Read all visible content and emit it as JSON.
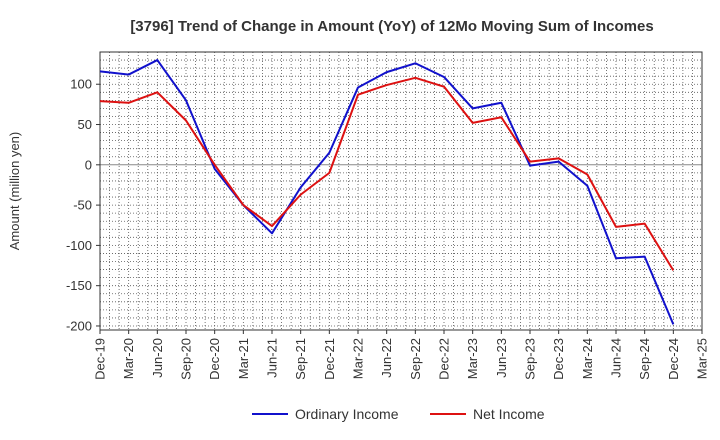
{
  "chart_data": {
    "type": "line",
    "title": "[3796]  Trend of Change in Amount (YoY) of 12Mo Moving Sum of Incomes",
    "xlabel": "",
    "ylabel": "Amount (million yen)",
    "ylim": [
      -205,
      140
    ],
    "yticks": [
      100,
      50,
      0,
      -50,
      -100,
      -150,
      -200
    ],
    "grid": true,
    "legend_position": "bottom-center",
    "categories": [
      "Dec-19",
      "Mar-20",
      "Jun-20",
      "Sep-20",
      "Dec-20",
      "Mar-21",
      "Jun-21",
      "Sep-21",
      "Dec-21",
      "Mar-22",
      "Jun-22",
      "Sep-22",
      "Dec-22",
      "Mar-23",
      "Jun-23",
      "Sep-23",
      "Dec-23",
      "Mar-24",
      "Jun-24",
      "Sep-24",
      "Dec-24",
      "Mar-25"
    ],
    "series": [
      {
        "name": "Ordinary Income",
        "color": "#1111cc",
        "values": [
          116,
          112,
          130,
          80,
          -5,
          -50,
          -85,
          -28,
          15,
          96,
          115,
          126,
          109,
          70,
          77,
          -1,
          4,
          -26,
          -116,
          -114,
          -198,
          null
        ]
      },
      {
        "name": "Net Income",
        "color": "#dd1111",
        "values": [
          79,
          77,
          90,
          55,
          0,
          -50,
          -76,
          -37,
          -10,
          87,
          99,
          108,
          97,
          52,
          59,
          4,
          8,
          -12,
          -77,
          -73,
          -131,
          null
        ]
      }
    ]
  }
}
